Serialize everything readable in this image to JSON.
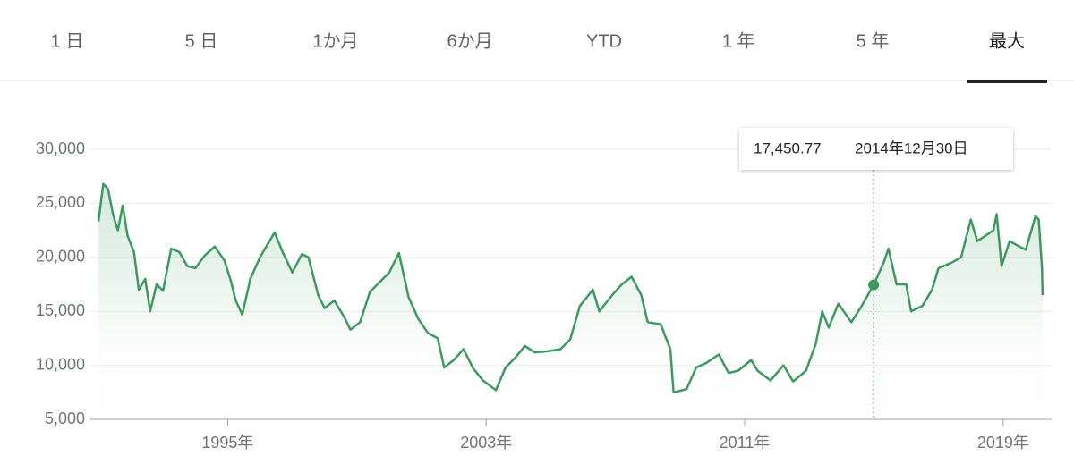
{
  "tabs": [
    "1 日",
    "5 日",
    "1か月",
    "6か月",
    "YTD",
    "1 年",
    "5 年",
    "最大"
  ],
  "selected_tab": 7,
  "chart_data": {
    "type": "line",
    "color": "#3c9a5f",
    "x": [
      1991.0,
      1991.15,
      1991.3,
      1991.45,
      1991.6,
      1991.75,
      1991.9,
      1992.1,
      1992.25,
      1992.45,
      1992.6,
      1992.8,
      1993.0,
      1993.25,
      1993.5,
      1993.75,
      1994.0,
      1994.3,
      1994.6,
      1994.9,
      1995.1,
      1995.25,
      1995.45,
      1995.7,
      1996.0,
      1996.45,
      1996.7,
      1997.0,
      1997.3,
      1997.5,
      1997.8,
      1998.0,
      1998.3,
      1998.6,
      1998.8,
      1999.1,
      1999.4,
      1999.7,
      2000.0,
      2000.3,
      2000.6,
      2000.9,
      2001.2,
      2001.5,
      2001.7,
      2002.0,
      2002.3,
      2002.6,
      2002.9,
      2003.3,
      2003.6,
      2003.9,
      2004.2,
      2004.5,
      2004.9,
      2005.3,
      2005.6,
      2005.9,
      2006.3,
      2006.5,
      2006.9,
      2007.2,
      2007.5,
      2007.8,
      2008.0,
      2008.4,
      2008.7,
      2008.8,
      2009.2,
      2009.5,
      2009.8,
      2010.2,
      2010.5,
      2010.8,
      2011.2,
      2011.4,
      2011.8,
      2012.2,
      2012.5,
      2012.9,
      2013.2,
      2013.4,
      2013.6,
      2013.9,
      2014.3,
      2014.6,
      2014.99,
      2015.3,
      2015.45,
      2015.7,
      2016.0,
      2016.15,
      2016.5,
      2016.8,
      2017.0,
      2017.4,
      2017.7,
      2018.0,
      2018.2,
      2018.7,
      2018.8,
      2018.95,
      2019.2,
      2019.5,
      2019.7,
      2020.0,
      2020.1,
      2020.2,
      2020.22
    ],
    "values": [
      23300,
      26800,
      26300,
      24000,
      22500,
      24800,
      22000,
      20500,
      17000,
      18000,
      15000,
      17500,
      16900,
      20800,
      20500,
      19200,
      19000,
      20200,
      21000,
      19700,
      17800,
      16000,
      14700,
      18000,
      20000,
      22300,
      20500,
      18600,
      20300,
      20000,
      16500,
      15300,
      16000,
      14500,
      13300,
      14000,
      16800,
      17700,
      18600,
      20400,
      16300,
      14300,
      13000,
      12500,
      9800,
      10500,
      11500,
      9700,
      8600,
      7700,
      9800,
      10700,
      11800,
      11200,
      11300,
      11500,
      12400,
      15500,
      17000,
      15000,
      16500,
      17500,
      18200,
      16500,
      14000,
      13800,
      11500,
      7500,
      7800,
      9800,
      10200,
      11000,
      9300,
      9500,
      10500,
      9500,
      8600,
      10000,
      8500,
      9500,
      12000,
      15000,
      13500,
      15700,
      14000,
      15400,
      17450.77,
      19500,
      20800,
      17500,
      17500,
      15000,
      15500,
      17000,
      19000,
      19500,
      20000,
      23500,
      21500,
      22500,
      24000,
      19200,
      21500,
      21000,
      20700,
      23800,
      23500,
      19000,
      16500
    ],
    "xlim": [
      1991,
      2020.5
    ],
    "xticks": [
      {
        "value": 1995,
        "label": "1995年"
      },
      {
        "value": 2003,
        "label": "2003年"
      },
      {
        "value": 2011,
        "label": "2011年"
      },
      {
        "value": 2019,
        "label": "2019年"
      }
    ],
    "ylim": [
      5000,
      30000
    ],
    "yticks": [
      {
        "value": 5000,
        "label": "5,000"
      },
      {
        "value": 10000,
        "label": "10,000"
      },
      {
        "value": 15000,
        "label": "15,000"
      },
      {
        "value": 20000,
        "label": "20,000"
      },
      {
        "value": 25000,
        "label": "25,000"
      },
      {
        "value": 30000,
        "label": "30,000"
      }
    ],
    "grid": true,
    "tooltip": {
      "x": 2014.99,
      "values": [
        17450.77
      ],
      "value_labels": [
        "17,450.77"
      ],
      "date": "2014年12月30日"
    }
  }
}
